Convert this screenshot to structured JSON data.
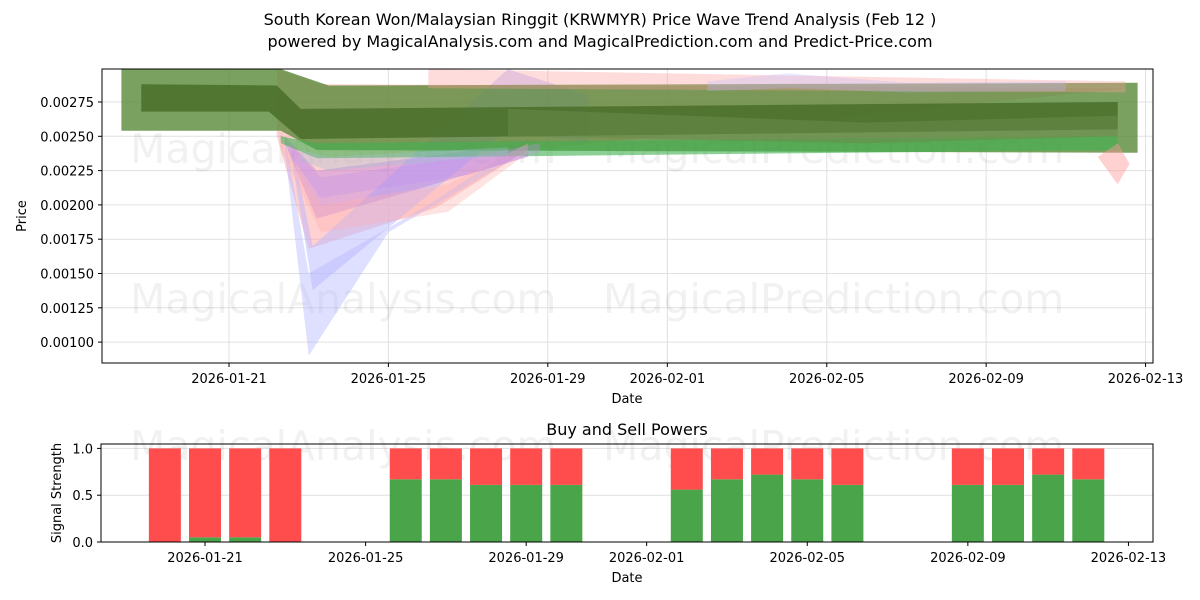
{
  "header": {
    "title": "South Korean Won/Malaysian Ringgit (KRWMYR) Price Wave Trend Analysis (Feb 12 )",
    "subtitle": "powered by MagicalAnalysis.com and MagicalPrediction.com and Predict-Price.com"
  },
  "watermarks": [
    "MagicalAnalysis.com",
    "MagicalPrediction.com"
  ],
  "colors": {
    "buy": "#4aa54a",
    "sell": "#ff4c4c",
    "band_green": "#5a8a3a",
    "band_dark_green": "#4a6e2a",
    "band_red": "#ff9a9a",
    "band_blue": "#b8b8ff",
    "band_purple": "#b070e0",
    "band_bright_green": "#3fb04f"
  },
  "chart_data": [
    {
      "type": "area",
      "title": "South Korean Won/Malaysian Ringgit (KRWMYR) Price Wave Trend Analysis (Feb 12 )",
      "xlabel": "Date",
      "ylabel": "Price",
      "x_ticks": [
        "2026-01-21",
        "2026-01-25",
        "2026-01-29",
        "2026-02-01",
        "2026-02-05",
        "2026-02-09",
        "2026-02-13"
      ],
      "y_ticks": [
        "0.00100",
        "0.00125",
        "0.00150",
        "0.00175",
        "0.00200",
        "0.00225",
        "0.00250",
        "0.00275"
      ],
      "ylim": [
        0.00085,
        0.00299
      ],
      "grid": true,
      "series": [
        {
          "name": "outer-green-band",
          "color": "#5a8a3a",
          "opacity": 0.8,
          "upper": [
            [
              "2026-01-18.3",
              0.00299
            ],
            [
              "2026-01-22.3",
              0.00299
            ],
            [
              "2026-01-23.5",
              0.00287
            ],
            [
              "2026-02-12.8",
              0.00289
            ]
          ],
          "lower": [
            [
              "2026-01-18.3",
              0.00254
            ],
            [
              "2026-01-22.3",
              0.00254
            ],
            [
              "2026-01-23.2",
              0.0024
            ],
            [
              "2026-02-12.8",
              0.00238
            ]
          ]
        },
        {
          "name": "inner-dark-green-band",
          "color": "#4a6e2a",
          "opacity": 0.85,
          "upper": [
            [
              "2026-01-18.8",
              0.00288
            ],
            [
              "2026-01-22.2",
              0.00287
            ],
            [
              "2026-01-22.8",
              0.0027
            ],
            [
              "2026-02-12.3",
              0.00275
            ]
          ],
          "lower": [
            [
              "2026-01-18.8",
              0.00268
            ],
            [
              "2026-01-22.0",
              0.00268
            ],
            [
              "2026-01-22.8",
              0.00248
            ],
            [
              "2026-02-12.3",
              0.00255
            ]
          ]
        },
        {
          "name": "bright-green-band",
          "color": "#3fb04f",
          "opacity": 0.6,
          "upper": [
            [
              "2026-01-22.3",
              0.0025
            ],
            [
              "2026-01-23.2",
              0.00245
            ],
            [
              "2026-02-12.3",
              0.0025
            ]
          ],
          "lower": [
            [
              "2026-01-22.3",
              0.00245
            ],
            [
              "2026-01-23.2",
              0.00234
            ],
            [
              "2026-02-12.3",
              0.0024
            ]
          ]
        },
        {
          "name": "red-band-1",
          "color": "#ff9a9a",
          "opacity": 0.45,
          "upper": [
            [
              "2026-01-22.2",
              0.00299
            ],
            [
              "2026-01-23.3",
              0.00288
            ],
            [
              "2026-02-12.5",
              0.00285
            ]
          ],
          "lower": [
            [
              "2026-01-22.2",
              0.0025
            ],
            [
              "2026-01-23.0",
              0.00168
            ],
            [
              "2026-01-26.2",
              0.00198
            ],
            [
              "2026-01-28.5",
              0.0024
            ]
          ]
        },
        {
          "name": "blue-band-deep",
          "color": "#b8b8ff",
          "opacity": 0.45,
          "upper": [
            [
              "2026-01-22.4",
              0.0025
            ],
            [
              "2026-01-23.0",
              0.0015
            ],
            [
              "2026-01-26.0",
              0.002
            ],
            [
              "2026-01-28.5",
              0.00248
            ]
          ],
          "lower": [
            [
              "2026-01-22.4",
              0.0024
            ],
            [
              "2026-01-23.0",
              0.0009
            ],
            [
              "2026-01-25.0",
              0.0018
            ],
            [
              "2026-01-28.5",
              0.0024
            ]
          ]
        },
        {
          "name": "blue-band-rising",
          "color": "#b8b8ff",
          "opacity": 0.5,
          "upper": [
            [
              "2026-01-22.6",
              0.0024
            ],
            [
              "2026-01-23.1",
              0.0017
            ],
            [
              "2026-01-28.0",
              0.00299
            ],
            [
              "2026-01-30.0",
              0.0028
            ]
          ],
          "lower": [
            [
              "2026-01-22.6",
              0.0023
            ],
            [
              "2026-01-23.1",
              0.00138
            ],
            [
              "2026-01-28.0",
              0.00255
            ],
            [
              "2026-01-30.0",
              0.00245
            ]
          ]
        },
        {
          "name": "purple-band",
          "color": "#b070e0",
          "opacity": 0.35,
          "upper": [
            [
              "2026-01-22.4",
              0.0025
            ],
            [
              "2026-01-23.2",
              0.00225
            ],
            [
              "2026-01-28.5",
              0.00245
            ]
          ],
          "lower": [
            [
              "2026-01-22.4",
              0.00245
            ],
            [
              "2026-01-23.2",
              0.0019
            ],
            [
              "2026-01-28.5",
              0.00235
            ]
          ]
        }
      ]
    },
    {
      "type": "bar",
      "title": "Buy and Sell Powers",
      "xlabel": "Date",
      "ylabel": "Signal Strength",
      "x_ticks": [
        "2026-01-21",
        "2026-01-25",
        "2026-01-29",
        "2026-02-01",
        "2026-02-05",
        "2026-02-09",
        "2026-02-13"
      ],
      "y_ticks": [
        "0.0",
        "0.5",
        "1.0"
      ],
      "ylim": [
        0,
        1.05
      ],
      "stacked": true,
      "categories": [
        "2026-01-20",
        "2026-01-21",
        "2026-01-22",
        "2026-01-23",
        "2026-01-26",
        "2026-01-27",
        "2026-01-28",
        "2026-01-29",
        "2026-01-30",
        "2026-02-02",
        "2026-02-03",
        "2026-02-04",
        "2026-02-05",
        "2026-02-06",
        "2026-02-09",
        "2026-02-10",
        "2026-02-11",
        "2026-02-12"
      ],
      "series": [
        {
          "name": "Buy",
          "color": "#4aa54a",
          "values": [
            0.0,
            0.05,
            0.05,
            0.0,
            0.67,
            0.67,
            0.61,
            0.61,
            0.61,
            0.56,
            0.67,
            0.72,
            0.67,
            0.61,
            0.61,
            0.61,
            0.72,
            0.67
          ]
        },
        {
          "name": "Sell",
          "color": "#ff4c4c",
          "values": [
            1.0,
            0.95,
            0.95,
            1.0,
            0.33,
            0.33,
            0.39,
            0.39,
            0.39,
            0.44,
            0.33,
            0.28,
            0.33,
            0.39,
            0.39,
            0.39,
            0.28,
            0.33
          ]
        }
      ]
    }
  ]
}
